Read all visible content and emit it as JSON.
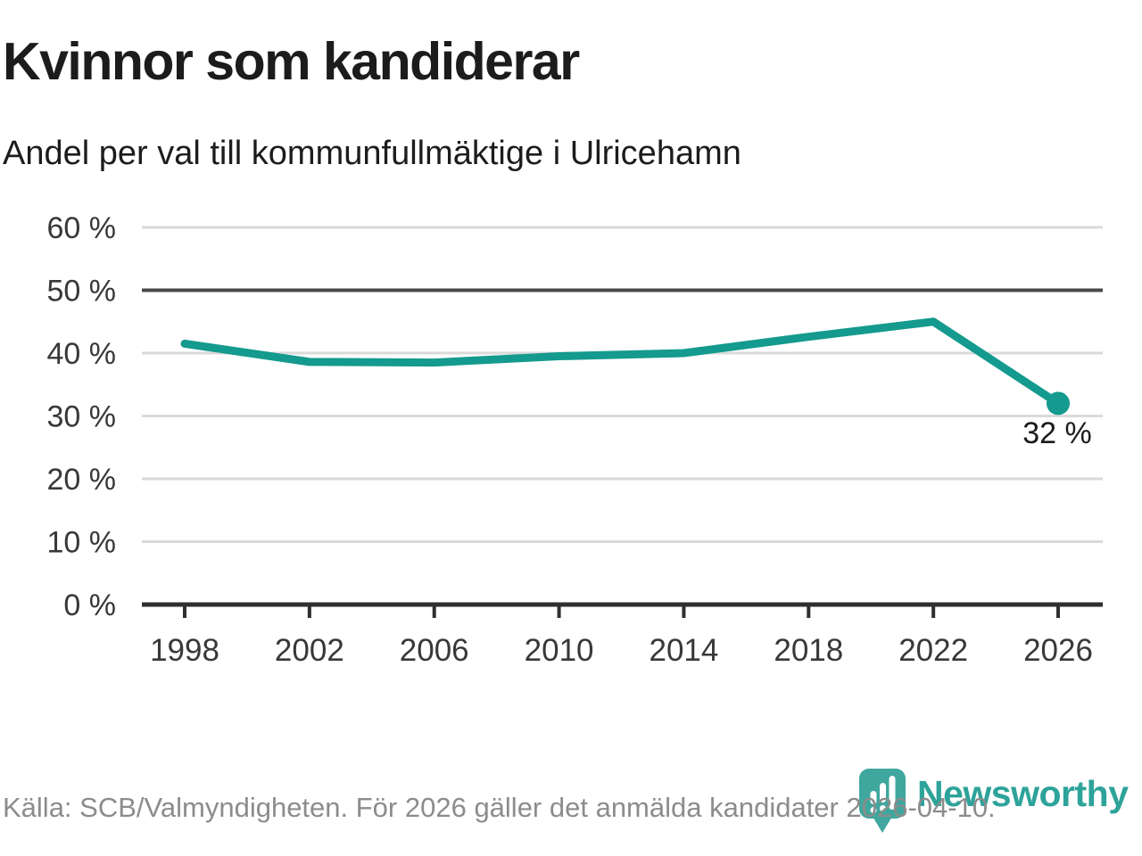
{
  "header": {
    "title": "Kvinnor som kandiderar",
    "subtitle": "Andel per val till kommunfullmäktige i Ulricehamn"
  },
  "footer": {
    "source": "Källa: SCB/Valmyndigheten. För 2026 gäller det anmälda kandidater 2026-04-10.",
    "logo_text": "Newsworthy"
  },
  "colors": {
    "accent_line": "#149a8e",
    "logo_text": "#2ea39a",
    "logo_icon": "#3fa79e",
    "title_text": "#1c1c1c",
    "muted_text": "#8c8c8c",
    "axis_text": "#383838",
    "grid": "#dadada",
    "reference_grid": "#4a4a4a"
  },
  "chart_data": {
    "type": "line",
    "title": "Kvinnor som kandiderar",
    "subtitle": "Andel per val till kommunfullmäktige i Ulricehamn",
    "x": [
      1998,
      2002,
      2006,
      2010,
      2014,
      2018,
      2022,
      2026
    ],
    "values": [
      41.5,
      38.6,
      38.5,
      39.5,
      40.0,
      42.6,
      45.0,
      32.0
    ],
    "unit": "%",
    "ylim": [
      0,
      60
    ],
    "y_ticks": [
      {
        "value": 60,
        "label": "60 %"
      },
      {
        "value": 50,
        "label": "50 %"
      },
      {
        "value": 40,
        "label": "40 %"
      },
      {
        "value": 30,
        "label": "30 %"
      },
      {
        "value": 20,
        "label": "20 %"
      },
      {
        "value": 10,
        "label": "10 %"
      },
      {
        "value": 0,
        "label": "0 %"
      }
    ],
    "x_tick_labels": [
      "1998",
      "2002",
      "2006",
      "2010",
      "2014",
      "2018",
      "2022",
      "2026"
    ],
    "reference_line_value": 50,
    "end_point_label": "32 %",
    "grid": true,
    "legend": "none",
    "marker_on_last_point_only": true
  }
}
